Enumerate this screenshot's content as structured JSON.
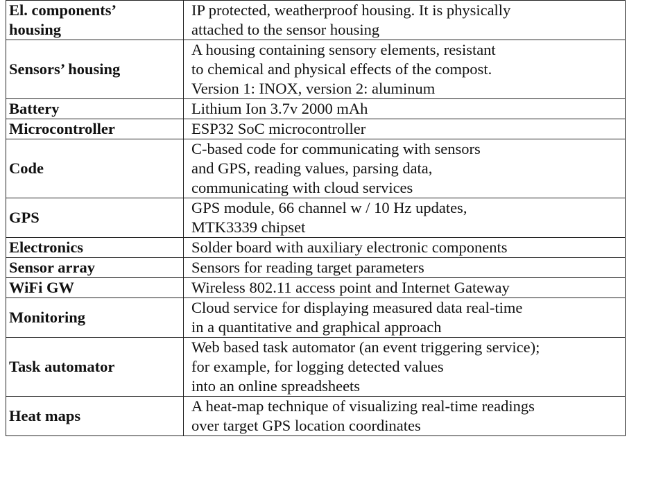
{
  "table": {
    "rows": [
      {
        "name": "El. components’\nhousing",
        "description": "IP protected, weatherproof housing. It is physically\nattached to the sensor housing"
      },
      {
        "name": "Sensors’ housing",
        "description": "A housing containing sensory elements, resistant\nto chemical and physical effects of the compost.\nVersion 1: INOX, version 2: aluminum"
      },
      {
        "name": "Battery",
        "description": "Lithium Ion 3.7v 2000 mAh"
      },
      {
        "name": "Microcontroller",
        "description": "ESP32 SoC microcontroller"
      },
      {
        "name": "Code",
        "description": "C-based code for communicating with sensors\nand GPS, reading values, parsing data,\ncommunicating with cloud services"
      },
      {
        "name": "GPS",
        "description": "GPS module, 66 channel w / 10 Hz updates,\nMTK3339 chipset"
      },
      {
        "name": "Electronics",
        "description": "Solder board with auxiliary electronic components"
      },
      {
        "name": "Sensor array",
        "description": "Sensors for reading target parameters"
      },
      {
        "name": "WiFi GW",
        "description": "Wireless 802.11 access point and Internet Gateway"
      },
      {
        "name": "Monitoring",
        "description": "Cloud service for displaying measured data real-time\nin a quantitative and graphical approach"
      },
      {
        "name": "Task automator",
        "description": "Web based task automator (an event triggering service);\nfor example, for logging detected values\ninto an online spreadsheets"
      },
      {
        "name": "Heat maps",
        "description": "A heat-map technique of visualizing real-time readings\nover target GPS location coordinates"
      }
    ]
  }
}
